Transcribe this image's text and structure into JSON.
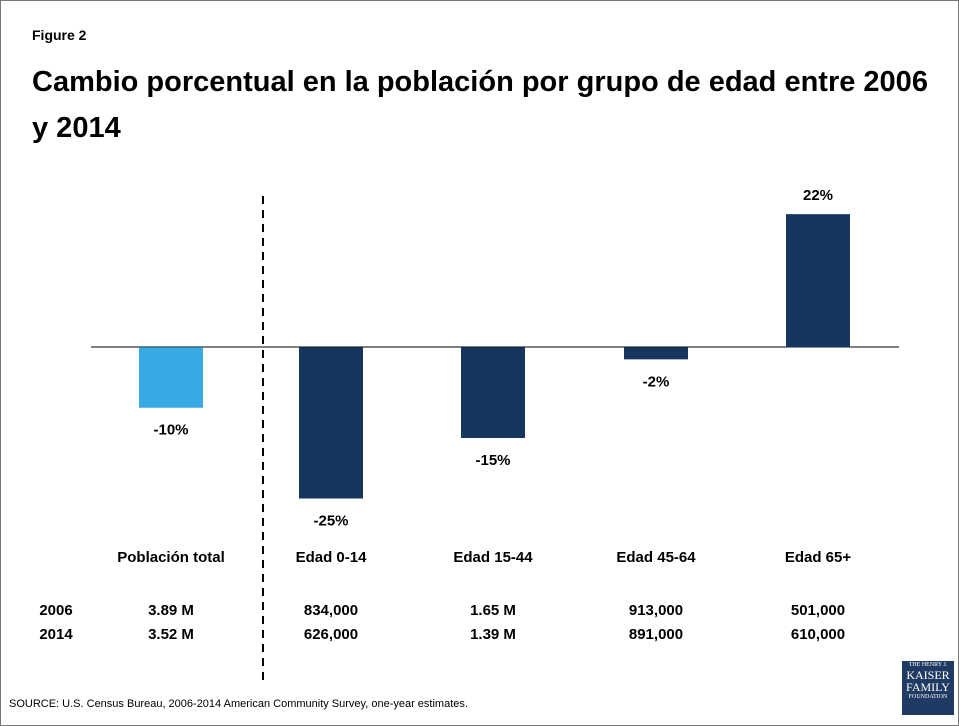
{
  "figure_label": "Figure 2",
  "chart_data": {
    "type": "bar",
    "title": "Cambio porcentual en la población por grupo de edad entre 2006 y 2014",
    "categories": [
      "Población total",
      "Edad 0-14",
      "Edad 15-44",
      "Edad 45-64",
      "Edad 65+"
    ],
    "values": [
      -10,
      -25,
      -15,
      -2,
      22
    ],
    "value_labels": [
      "-10%",
      "-25%",
      "-15%",
      "-2%",
      "22%"
    ],
    "colors": [
      "#39a9e4",
      "#17365d",
      "#17365d",
      "#17365d",
      "#17365d"
    ],
    "ylim": [
      -30,
      25
    ]
  },
  "table": {
    "rows": [
      {
        "label": "2006",
        "values": [
          "3.89 M",
          "834,000",
          "1.65 M",
          "913,000",
          "501,000"
        ]
      },
      {
        "label": "2014",
        "values": [
          "3.52 M",
          "626,000",
          "1.39 M",
          "891,000",
          "610,000"
        ]
      }
    ]
  },
  "source": "SOURCE: U.S. Census Bureau, 2006-2014 American Community Survey, one-year estimates.",
  "logo": [
    "THE HENRY J.",
    "KAISER",
    "FAMILY",
    "FOUNDATION"
  ]
}
